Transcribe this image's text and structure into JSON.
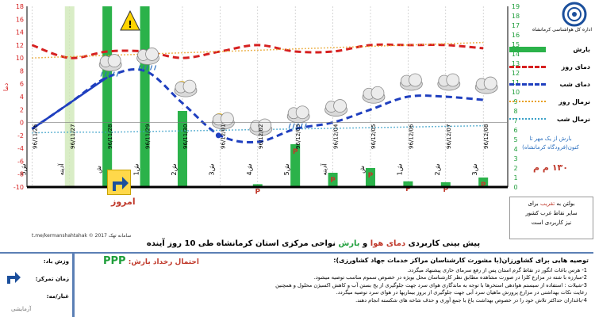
{
  "chart_data": {
    "type": "line",
    "categories": [
      "96/11/26",
      "96/11/27",
      "96/11/28",
      "96/11/29",
      "96/11/30",
      "96/12/01",
      "96/12/02",
      "96/12/03",
      "96/12/04",
      "96/12/05",
      "96/12/06",
      "96/12/07",
      "96/12/08"
    ],
    "weekdays": [
      "5ش",
      "آدینه",
      "ش",
      "1ش",
      "2ش",
      "3ش",
      "4ش",
      "5ش",
      "آدینه",
      "ش",
      "1ش",
      "2ش",
      "3ش"
    ],
    "left_ylim": [
      -10,
      18
    ],
    "left_ticks": [
      "-10",
      "-8",
      "-6",
      "-4",
      "-2",
      "0",
      "2",
      "4",
      "6",
      "8",
      "10",
      "12",
      "14",
      "16",
      "18"
    ],
    "right_ylim": [
      0,
      19
    ],
    "right_ticks": [
      "0",
      "1",
      "2",
      "3",
      "4",
      "5",
      "6",
      "7",
      "8",
      "9",
      "10",
      "11",
      "12",
      "13",
      "14",
      "15",
      "16",
      "17",
      "18",
      "19"
    ],
    "left_ylabel": "دما",
    "series": [
      {
        "name": "دمای روز",
        "color": "#d62020",
        "values": [
          12,
          10,
          11,
          11,
          10,
          11,
          12,
          11,
          11,
          12,
          12,
          12,
          11.5
        ]
      },
      {
        "name": "دمای شب",
        "color": "#1f3fbf",
        "values": [
          -1,
          3,
          7,
          8,
          3,
          -2,
          -3,
          -1,
          0,
          2,
          4,
          4,
          3.5
        ]
      },
      {
        "name": "نرمال روز",
        "color": "#e8a020",
        "values": [
          10,
          10.2,
          10.4,
          10.6,
          10.8,
          11,
          11.2,
          11.4,
          11.6,
          11.8,
          12,
          12.2,
          12.4
        ]
      },
      {
        "name": "نرمال شب",
        "color": "#3aa0c8",
        "values": [
          -1.6,
          -1.5,
          -1.5,
          -1.4,
          -1.3,
          -1.2,
          -1.1,
          -1.0,
          -0.9,
          -0.8,
          -0.7,
          -0.6,
          -0.5
        ]
      }
    ],
    "rain": {
      "name": "بارش",
      "color": "#2bb24a",
      "values": [
        0,
        0,
        20,
        20,
        8,
        0,
        0.3,
        4.5,
        1.5,
        2,
        0.6,
        0.5,
        1
      ]
    },
    "weather_icons": [
      "",
      "",
      "rain-cloud-icon",
      "rain-cloud-icon",
      "partly-cloudy-icon",
      "sun-cloud-icon",
      "cloud-icon",
      "rain-cloud-icon",
      "cloud-icon",
      "cloud-icon",
      "cloud-icon",
      "cloud-icon",
      "cloud-icon"
    ]
  },
  "legend": {
    "items": [
      {
        "label": "بارش",
        "color": "#2bb24a",
        "style": "bar"
      },
      {
        "label": "دمای روز",
        "color": "#d62020",
        "style": "dash"
      },
      {
        "label": "دمای شب",
        "color": "#1f3fbf",
        "style": "dash"
      },
      {
        "label": "نرمال روز",
        "color": "#e8a020",
        "style": "dot"
      },
      {
        "label": "نرمال شب",
        "color": "#3aa0c8",
        "style": "dot"
      }
    ]
  },
  "logo": {
    "org": "اداره کل هواشناسی کرمانشاه"
  },
  "rain_note": {
    "line1": "بارش از یک مهر تا",
    "line2": "کنون(فرودگاه کرمانشاه)",
    "total": "۱۳۰ م م"
  },
  "bulletin": {
    "line1": "بولتن به",
    "hl": "تقریب",
    "line1b": "برای",
    "line2": "سایر نقاط غرب کشور",
    "line3": "نیز کاربردی است"
  },
  "credit": "t.me/kermanshahtahak © 2017 سامانه تهک",
  "title": {
    "pre": "پیش بینی کاربردی",
    "temp": "دمای هوا",
    "and": "و",
    "rain": "بارش",
    "post": "نواحی مرکزی استان کرمانشاه طی 10 روز آینده"
  },
  "today": "امروز",
  "probability": {
    "label": "احتمال رخداد بارش:",
    "ppp": "PPP"
  },
  "advice": {
    "head": "توصیه هایی برای کشاورزان(با مشورت کارشناسان مراکز خدمات جهاد کشاورزی):",
    "lines": [
      "1- هرس باغات انگور در نقاط گرم استان پس از رفع سرمای حاری پیشنهاد میگردد.",
      "2-مبارزه با شته در مزارع کلزا در صورت مشاهده مطابق نظر کارشناسان محل بویژه در خصوص سموم مناسب توصیه میشود.",
      "3-شیلات : استفاده از سیستم هوادهی استخرها با توجه به ماندگاری هوای سرد جهت جلوگیری از یخ بستن آب و کاهش اکسیژن محلول و همچنین",
      "رعایت نکات بهداشتی در مزارع پرورش ماهیان سرد آبی جهت جلوگیری از بروز بیماریها در هوای سرد توصیه میگردد.",
      "4-باغداران حداکثر تلاش خود را در خصوص بهداشت باغ با جمع آوری و حذف شاخه های شکسته انجام دهند."
    ]
  },
  "side": {
    "wind": "وزش باد:",
    "focus": "زمان تمرکز:",
    "dust": "غبار/مه:",
    "note": "آزمایشی"
  }
}
